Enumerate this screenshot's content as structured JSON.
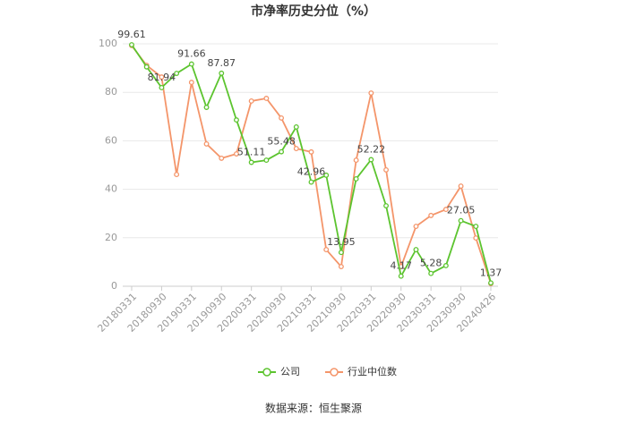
{
  "chart_data": {
    "type": "line",
    "title": "市净率历史分位（%）",
    "categories": [
      "20180331",
      null,
      "20180930",
      null,
      "20190331",
      null,
      "20190930",
      null,
      "20200331",
      null,
      "20200930",
      null,
      "20210331",
      null,
      "20210930",
      null,
      "20220331",
      null,
      "20220930",
      null,
      "20230331",
      null,
      "20230930",
      null,
      "20240426"
    ],
    "series": [
      {
        "name": "公司",
        "color": "#5cc42f",
        "values": [
          99.61,
          90.5,
          81.94,
          87.8,
          91.66,
          73.8,
          87.87,
          68.6,
          51.11,
          52.0,
          55.48,
          65.7,
          42.96,
          45.8,
          13.95,
          44.3,
          52.22,
          33.2,
          4.17,
          15.1,
          5.28,
          8.5,
          27.05,
          24.7,
          1.37
        ],
        "value_labels": [
          "99.61",
          null,
          "81.94",
          null,
          "91.66",
          null,
          "87.87",
          null,
          "51.11",
          null,
          "55.48",
          null,
          "42.96",
          null,
          "13.95",
          null,
          "52.22",
          null,
          "4.17",
          null,
          "5.28",
          null,
          "27.05",
          null,
          "1.37"
        ]
      },
      {
        "name": "行业中位数",
        "color": "#f4956a",
        "values": [
          99.3,
          91.1,
          86.3,
          46.1,
          84.1,
          58.7,
          52.8,
          54.6,
          76.4,
          77.5,
          69.4,
          56.8,
          55.4,
          15.1,
          8.1,
          52.0,
          79.7,
          48.0,
          8.1,
          24.7,
          29.2,
          31.7,
          41.3,
          19.9,
          1.1
        ]
      }
    ],
    "ylim": [
      0,
      100
    ],
    "yticks": [
      0,
      20,
      40,
      60,
      80,
      100
    ],
    "grid": true,
    "source": "数据来源：恒生聚源"
  }
}
